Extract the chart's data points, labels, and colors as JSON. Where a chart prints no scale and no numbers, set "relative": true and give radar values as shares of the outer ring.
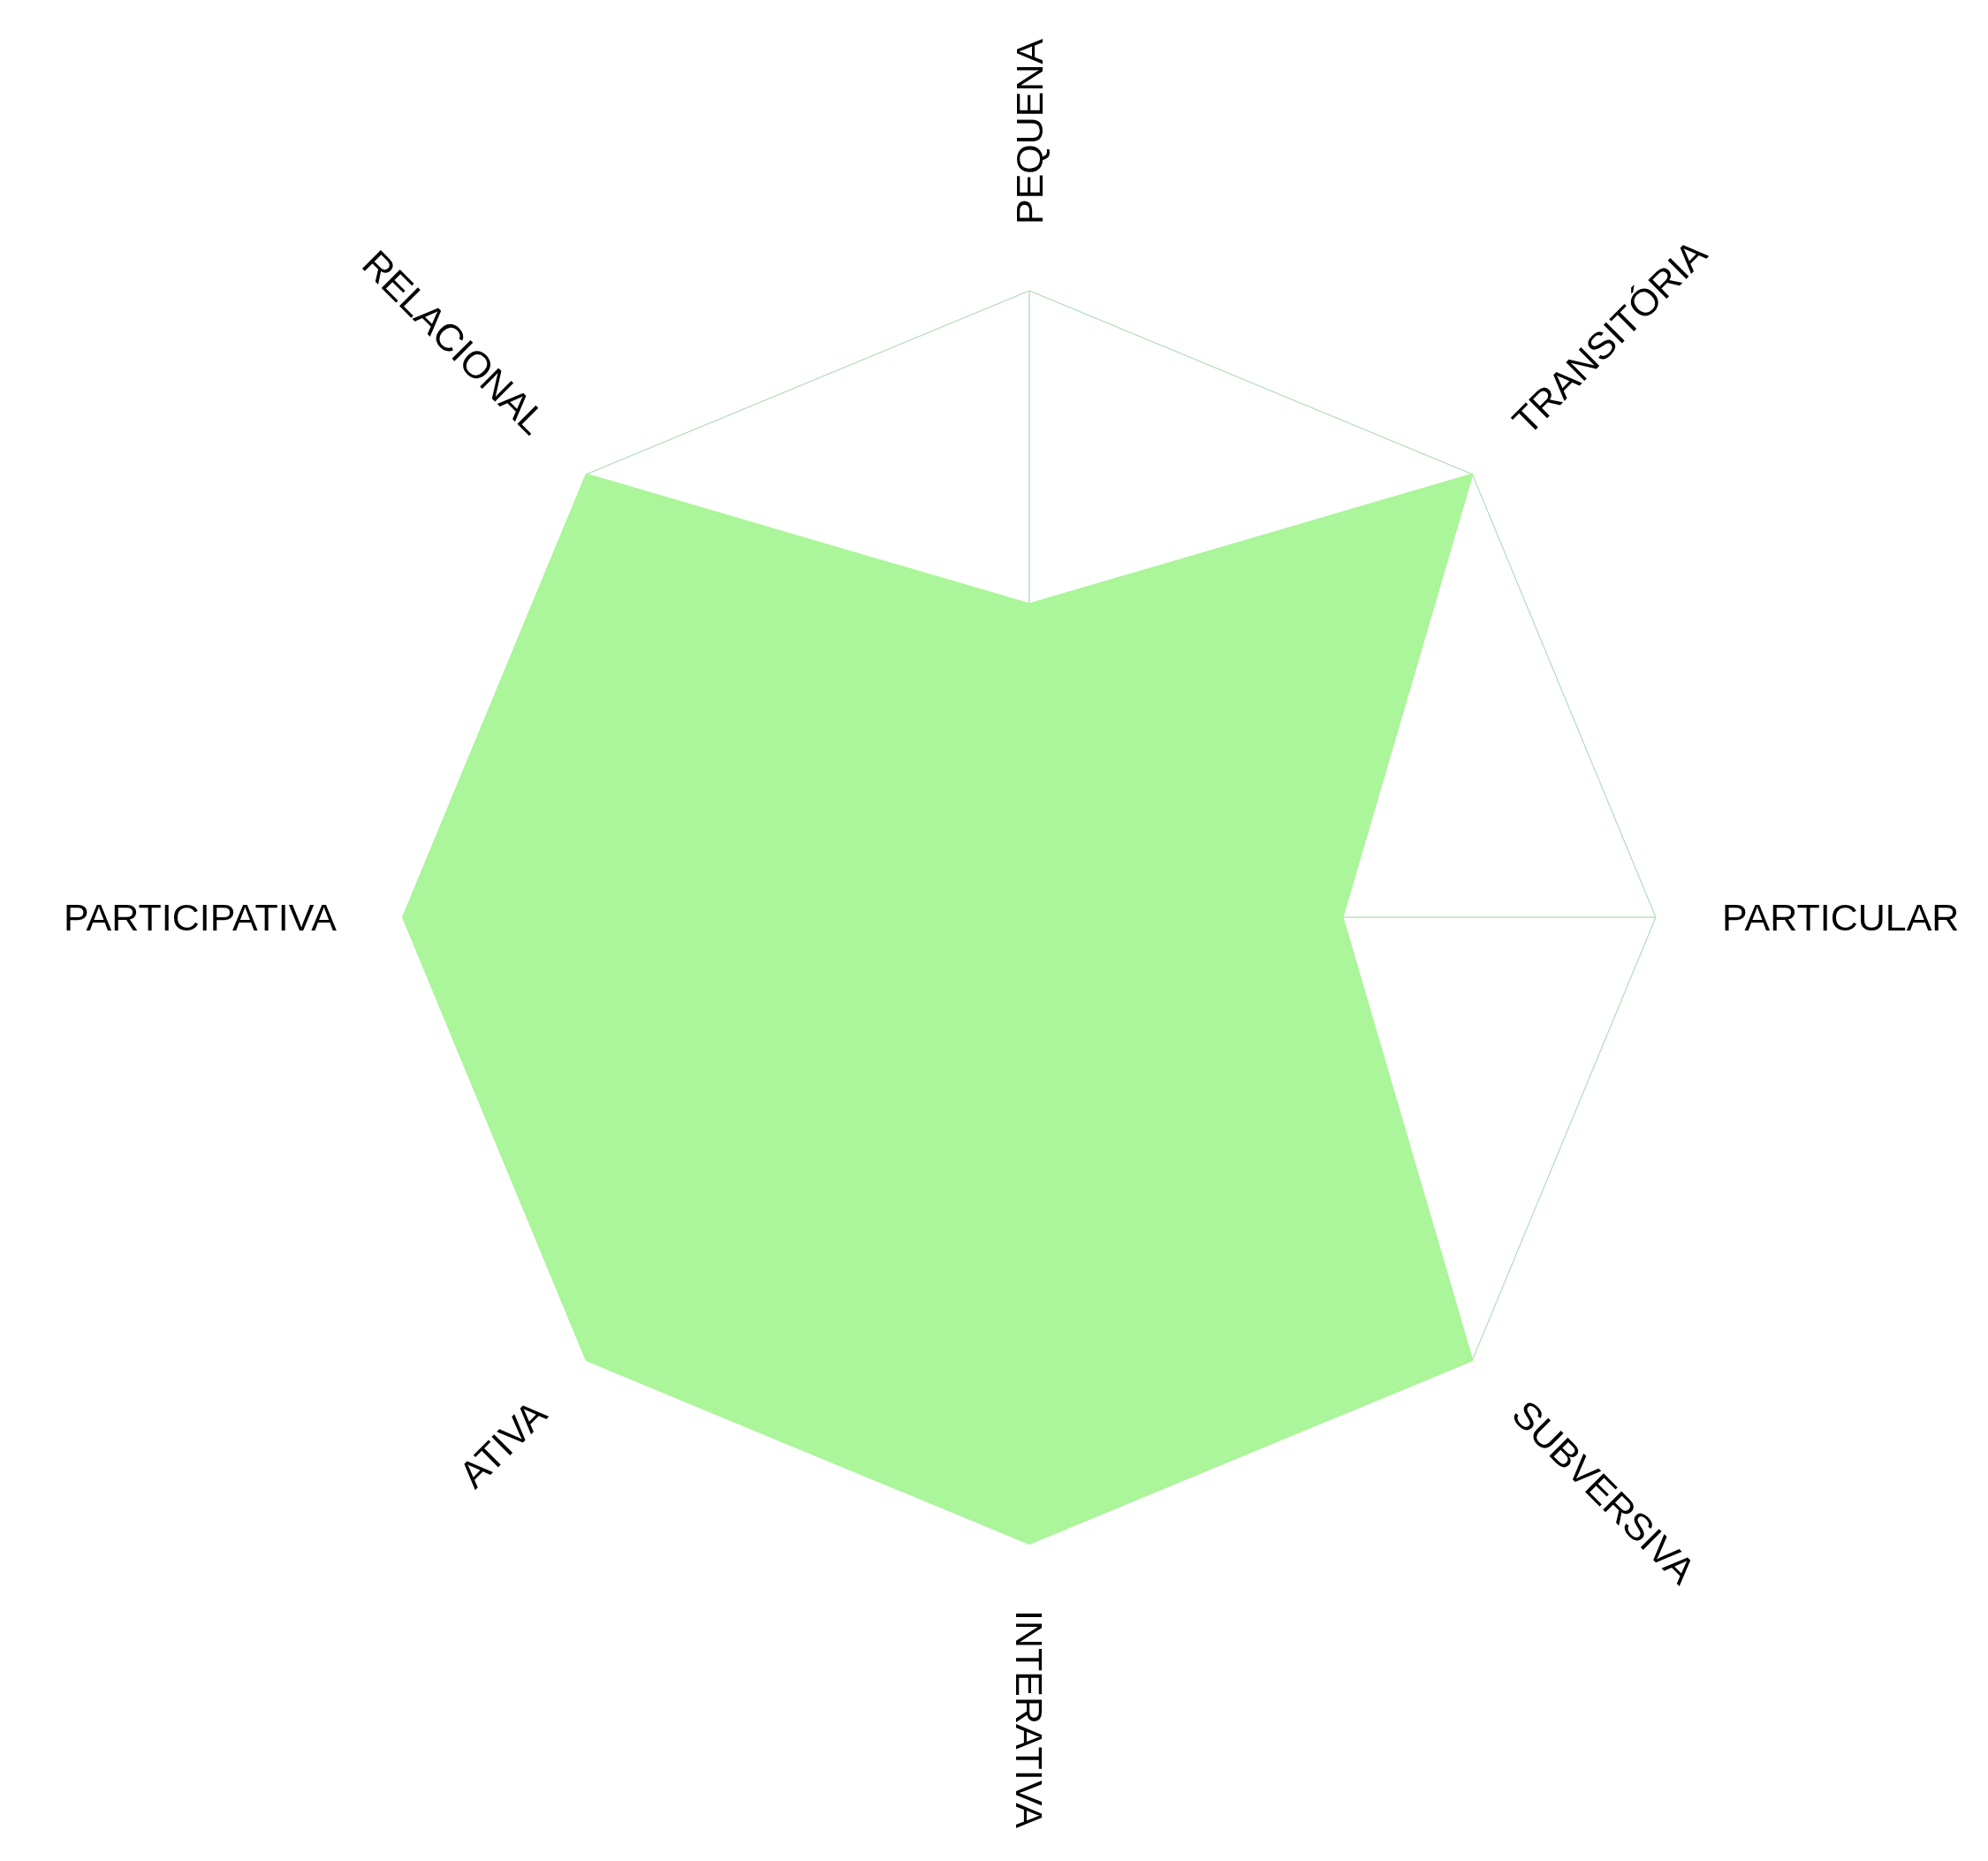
{
  "chart_data": {
    "type": "radar",
    "relative": true,
    "grid": true,
    "categories": [
      "PEQUENA",
      "TRANSITÓRIA",
      "PARTICULAR",
      "SUBVERSIVA",
      "INTERATIVA",
      "ATIVA",
      "PARTICIPATIVA",
      "RELACIONAL"
    ],
    "series": [
      {
        "color": "#abf59a",
        "values": [
          0.5,
          1,
          0.5,
          1,
          1,
          1,
          1,
          1
        ]
      }
    ]
  }
}
